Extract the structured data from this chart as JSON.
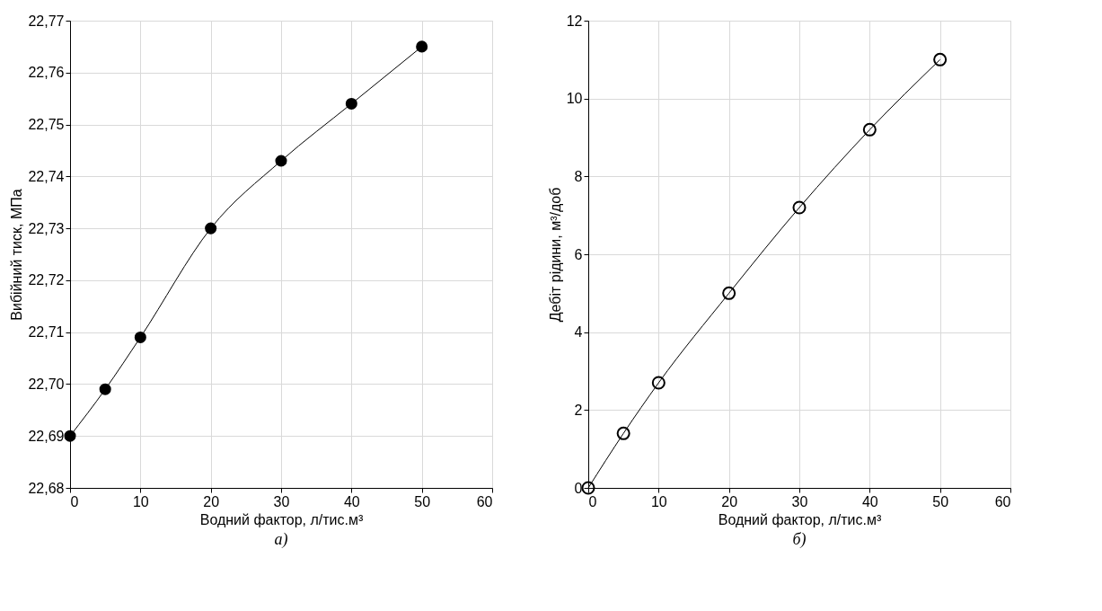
{
  "chart_data": [
    {
      "type": "line",
      "title": "а)",
      "xlabel": "Водний фактор, л/тис.м³",
      "ylabel": "Вибійний тиск, МПа",
      "x": [
        0,
        5,
        10,
        20,
        30,
        40,
        50
      ],
      "series": [
        {
          "color": "#000000",
          "values": [
            22.69,
            22.699,
            22.709,
            22.73,
            22.743,
            22.754,
            22.765
          ]
        }
      ],
      "xlim": [
        0,
        60
      ],
      "xticks": [
        0,
        10,
        20,
        30,
        40,
        50,
        60
      ],
      "ylim": [
        22.68,
        22.77
      ],
      "yticks": [
        {
          "value": 22.68,
          "label": "22,68"
        },
        {
          "value": 22.69,
          "label": "22,69"
        },
        {
          "value": 22.7,
          "label": "22,70"
        },
        {
          "value": 22.71,
          "label": "22,71"
        },
        {
          "value": 22.72,
          "label": "22,72"
        },
        {
          "value": 22.73,
          "label": "22,73"
        },
        {
          "value": 22.74,
          "label": "22,74"
        },
        {
          "value": 22.75,
          "label": "22,75"
        },
        {
          "value": 22.76,
          "label": "22,76"
        },
        {
          "value": 22.77,
          "label": "22,77"
        }
      ],
      "grid": true,
      "marker": "circle",
      "line_style": "solid"
    },
    {
      "type": "line",
      "title": "б)",
      "xlabel": "Водний фактор, л/тис.м³",
      "ylabel": "Дебіт рідини, м³/доб",
      "x": [
        0,
        5,
        10,
        20,
        30,
        40,
        50
      ],
      "series": [
        {
          "color": "#000000",
          "values": [
            0,
            1.4,
            2.7,
            5.0,
            7.2,
            9.2,
            11.0
          ]
        }
      ],
      "xlim": [
        0,
        60
      ],
      "xticks": [
        0,
        10,
        20,
        30,
        40,
        50,
        60
      ],
      "ylim": [
        0,
        12
      ],
      "yticks": [
        0,
        2,
        4,
        6,
        8,
        10,
        12
      ],
      "grid": true,
      "marker": "circle",
      "line_style": "solid"
    }
  ]
}
